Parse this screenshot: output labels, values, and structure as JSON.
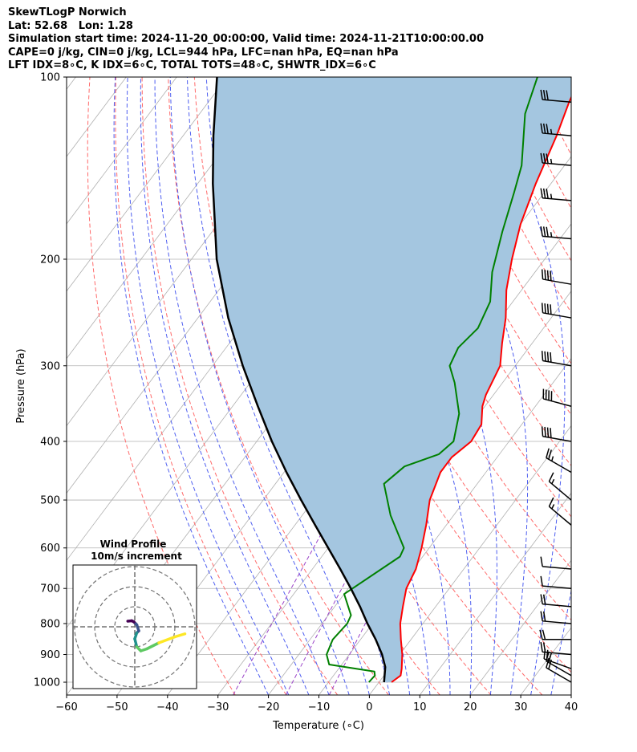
{
  "header": {
    "line1": "SkewTLogP Norwich",
    "line2": "Lat: 52.68   Lon: 1.28",
    "line3": "Simulation start time: 2024-11-20_00:00:00, Valid time: 2024-11-21T10:00:00.00",
    "line4": "CAPE=0 j/kg, CIN=0 j/kg, LCL=944 hPa, LFC=nan hPa, EQ=nan hPa",
    "line5": "LFT IDX=8∘C, K IDX=6∘C, TOTAL TOTS=48∘C, SHWTR_IDX=6∘C"
  },
  "chart_data": [
    {
      "type": "line",
      "skew_t_log_p": true,
      "xlabel": "Temperature (∘C)",
      "ylabel": "Pressure (hPa)",
      "xlim": [
        -60,
        40
      ],
      "ylim": [
        1050,
        100
      ],
      "y_scale": "log",
      "grid": true,
      "x_ticks": [
        -60,
        -50,
        -40,
        -30,
        -20,
        -10,
        0,
        10,
        20,
        30,
        40
      ],
      "x_tick_labels": [
        "−60",
        "−50",
        "−40",
        "−30",
        "−20",
        "−10",
        "0",
        "10",
        "20",
        "30",
        "40"
      ],
      "y_ticks": [
        100,
        200,
        300,
        400,
        500,
        600,
        700,
        800,
        900,
        1000
      ],
      "y_tick_labels": [
        "100",
        "200",
        "300",
        "400",
        "500",
        "600",
        "700",
        "800",
        "900",
        "1000"
      ],
      "series": [
        {
          "role": "temperature",
          "color": "#ff0000",
          "points": [
            [
              2.5,
              1000
            ],
            [
              3.3,
              975
            ],
            [
              2.5,
              950
            ],
            [
              0.5,
              900
            ],
            [
              -2.0,
              850
            ],
            [
              -4.5,
              800
            ],
            [
              -6.5,
              750
            ],
            [
              -8.5,
              700
            ],
            [
              -9.5,
              650
            ],
            [
              -11.5,
              600
            ],
            [
              -14.0,
              550
            ],
            [
              -17.0,
              500
            ],
            [
              -19.0,
              450
            ],
            [
              -19.0,
              425
            ],
            [
              -17.5,
              400
            ],
            [
              -18.0,
              375
            ],
            [
              -20.5,
              350
            ],
            [
              -21.5,
              335
            ],
            [
              -23.0,
              300
            ],
            [
              -26.0,
              275
            ],
            [
              -29.0,
              250
            ],
            [
              -33.0,
              225
            ],
            [
              -36.5,
              200
            ],
            [
              -40.0,
              175
            ],
            [
              -43.0,
              150
            ],
            [
              -46.0,
              125
            ],
            [
              -48.5,
              110
            ],
            [
              -50.0,
              100
            ]
          ]
        },
        {
          "role": "dewpoint",
          "color": "#008000",
          "points": [
            [
              -2.0,
              1000
            ],
            [
              -1.8,
              975
            ],
            [
              -2.5,
              960
            ],
            [
              -8.5,
              945
            ],
            [
              -12.5,
              935
            ],
            [
              -14.5,
              900
            ],
            [
              -15.5,
              850
            ],
            [
              -15.0,
              800
            ],
            [
              -15.5,
              775
            ],
            [
              -20.0,
              715
            ],
            [
              -14.5,
              620
            ],
            [
              -15.0,
              600
            ],
            [
              -22.5,
              530
            ],
            [
              -28.5,
              470
            ],
            [
              -27.0,
              440
            ],
            [
              -22.0,
              420
            ],
            [
              -21.0,
              400
            ],
            [
              -24.0,
              360
            ],
            [
              -29.5,
              320
            ],
            [
              -33.0,
              300
            ],
            [
              -34.0,
              280
            ],
            [
              -33.0,
              260
            ],
            [
              -34.5,
              235
            ],
            [
              -38.5,
              210
            ],
            [
              -42.5,
              180
            ],
            [
              -46.0,
              155
            ],
            [
              -48.5,
              140
            ],
            [
              -55.5,
              115
            ],
            [
              -58.5,
              100
            ]
          ]
        },
        {
          "role": "parcel",
          "color": "#000000",
          "points": [
            [
              1.0,
              1000
            ],
            [
              -1.0,
              944
            ],
            [
              -3.5,
              900
            ],
            [
              -7.0,
              850
            ],
            [
              -11.0,
              800
            ],
            [
              -15.0,
              750
            ],
            [
              -19.5,
              700
            ],
            [
              -24.5,
              650
            ],
            [
              -30.0,
              600
            ],
            [
              -36.0,
              550
            ],
            [
              -42.5,
              500
            ],
            [
              -49.5,
              450
            ],
            [
              -57.0,
              400
            ],
            [
              -65.0,
              350
            ],
            [
              -74.0,
              300
            ],
            [
              -84.0,
              250
            ],
            [
              -95.0,
              200
            ],
            [
              -107.0,
              150
            ],
            [
              -114.0,
              125
            ],
            [
              -122.0,
              100
            ]
          ]
        }
      ],
      "shading": {
        "between": [
          "temperature",
          "parcel"
        ],
        "color": "#a4c6e0"
      },
      "reference_lines": {
        "isotherms": {
          "color": "#b0b0b0",
          "step_c": 10
        },
        "dry_adiabats": {
          "color": "#ff6a6a",
          "style": "dashed"
        },
        "moist_adiabats": {
          "color": "#4f5ff0",
          "style": "dashed"
        },
        "mixing_ratio": {
          "color": "#9b44c8",
          "style": "dashed"
        }
      },
      "wind_barbs": [
        {
          "pressure": 1000,
          "direction_deg": 300,
          "speed_kt": 20
        },
        {
          "pressure": 975,
          "direction_deg": 300,
          "speed_kt": 20
        },
        {
          "pressure": 950,
          "direction_deg": 290,
          "speed_kt": 20
        },
        {
          "pressure": 900,
          "direction_deg": 275,
          "speed_kt": 20
        },
        {
          "pressure": 850,
          "direction_deg": 270,
          "speed_kt": 20
        },
        {
          "pressure": 800,
          "direction_deg": 275,
          "speed_kt": 20
        },
        {
          "pressure": 750,
          "direction_deg": 275,
          "speed_kt": 20
        },
        {
          "pressure": 700,
          "direction_deg": 275,
          "speed_kt": 10
        },
        {
          "pressure": 650,
          "direction_deg": 275,
          "speed_kt": 10
        },
        {
          "pressure": 550,
          "direction_deg": 310,
          "speed_kt": 15
        },
        {
          "pressure": 500,
          "direction_deg": 310,
          "speed_kt": 15
        },
        {
          "pressure": 450,
          "direction_deg": 300,
          "speed_kt": 25
        },
        {
          "pressure": 400,
          "direction_deg": 280,
          "speed_kt": 40
        },
        {
          "pressure": 350,
          "direction_deg": 285,
          "speed_kt": 40
        },
        {
          "pressure": 300,
          "direction_deg": 280,
          "speed_kt": 40
        },
        {
          "pressure": 250,
          "direction_deg": 280,
          "speed_kt": 40
        },
        {
          "pressure": 220,
          "direction_deg": 280,
          "speed_kt": 40
        },
        {
          "pressure": 185,
          "direction_deg": 275,
          "speed_kt": 35
        },
        {
          "pressure": 160,
          "direction_deg": 275,
          "speed_kt": 35
        },
        {
          "pressure": 140,
          "direction_deg": 275,
          "speed_kt": 35
        },
        {
          "pressure": 125,
          "direction_deg": 275,
          "speed_kt": 35
        },
        {
          "pressure": 110,
          "direction_deg": 275,
          "speed_kt": 30
        }
      ]
    },
    {
      "type": "line",
      "hodograph": true,
      "title": "Wind Profile",
      "subtitle": "10m/s increment",
      "rings_ms": [
        10,
        20,
        30
      ],
      "points_ms": [
        [
          -3.5,
          2.8
        ],
        [
          -1.5,
          3.0
        ],
        [
          -0.5,
          2.5
        ],
        [
          0.5,
          1.5
        ],
        [
          1.0,
          1.0
        ],
        [
          2.0,
          -2.0
        ],
        [
          1.0,
          -3.0
        ],
        [
          0.0,
          -6.0
        ],
        [
          1.0,
          -10.0
        ],
        [
          3.0,
          -12.0
        ],
        [
          6.0,
          -11.0
        ],
        [
          12.0,
          -8.0
        ],
        [
          20.0,
          -5.0
        ],
        [
          25.0,
          -3.5
        ]
      ],
      "gradient_colors": [
        "#440154",
        "#3b528b",
        "#21918c",
        "#5ec962",
        "#fde725"
      ]
    }
  ]
}
